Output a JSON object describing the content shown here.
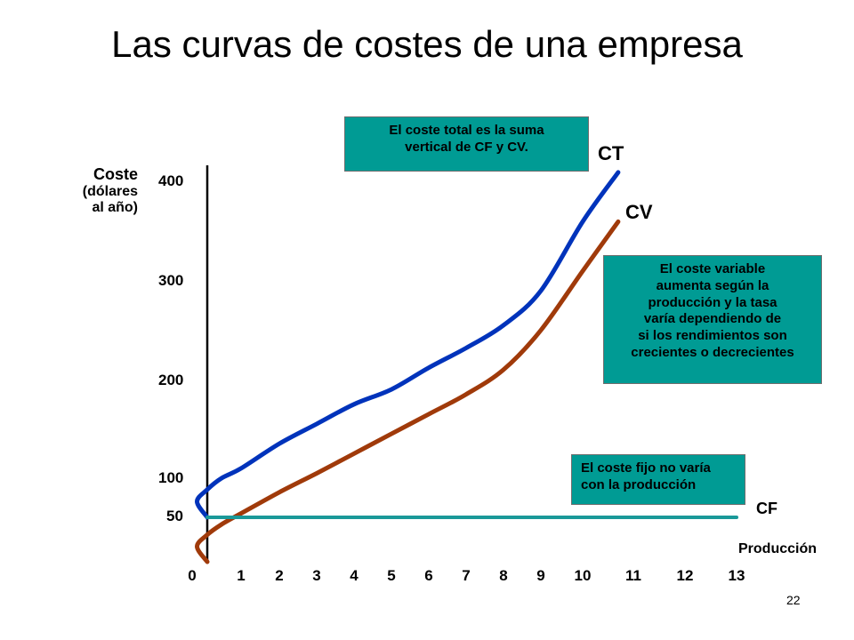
{
  "slide": {
    "title": "Las curvas de costes de una empresa",
    "page_number": "22"
  },
  "axis": {
    "ylabel_main": "Coste",
    "ylabel_sub1": "(dólares",
    "ylabel_sub2": "al año)",
    "xlabel": "Producción"
  },
  "notes": {
    "total_line1": "El coste total es la suma",
    "total_line2": "vertical de CF y CV.",
    "variable_lines": [
      "El coste variable",
      "aumenta según la",
      "producción y la tasa",
      "varía dependiendo de",
      "si los rendimientos son",
      "crecientes o decrecientes"
    ],
    "fixed_line1": "El coste fijo no varía",
    "fixed_line2": "con la producción"
  },
  "chart_data": {
    "type": "line",
    "title": "Las curvas de costes de una empresa",
    "xlabel": "Producción",
    "ylabel": "Coste (dólares al año)",
    "x_ticks": [
      "0",
      "1",
      "2",
      "3",
      "4",
      "5",
      "6",
      "7",
      "8",
      "9",
      "10",
      "11",
      "12",
      "13"
    ],
    "y_ticks": [
      "50",
      "100",
      "200",
      "300",
      "400"
    ],
    "xlim": [
      0,
      13
    ],
    "grid": false,
    "series": [
      {
        "name": "CT",
        "color": "#0033bb",
        "x": [
          0,
          0.1,
          0.3,
          0.6,
          1,
          2,
          3,
          4,
          5,
          6,
          7,
          8,
          9,
          10,
          10.7
        ],
        "y": [
          50,
          70,
          85,
          100,
          110,
          135,
          155,
          175,
          190,
          212,
          232,
          255,
          290,
          360,
          410
        ]
      },
      {
        "name": "CV",
        "color": "#a03a0a",
        "x": [
          0,
          0.1,
          0.3,
          0.6,
          1,
          2,
          3,
          4,
          5,
          6,
          7,
          8,
          9,
          10,
          10.7
        ],
        "y": [
          0,
          17,
          30,
          42,
          55,
          82,
          105,
          125,
          145,
          165,
          185,
          210,
          250,
          310,
          360
        ]
      },
      {
        "name": "CF",
        "color": "#1a9999",
        "x": [
          0,
          13
        ],
        "y": [
          50,
          50
        ]
      }
    ]
  }
}
